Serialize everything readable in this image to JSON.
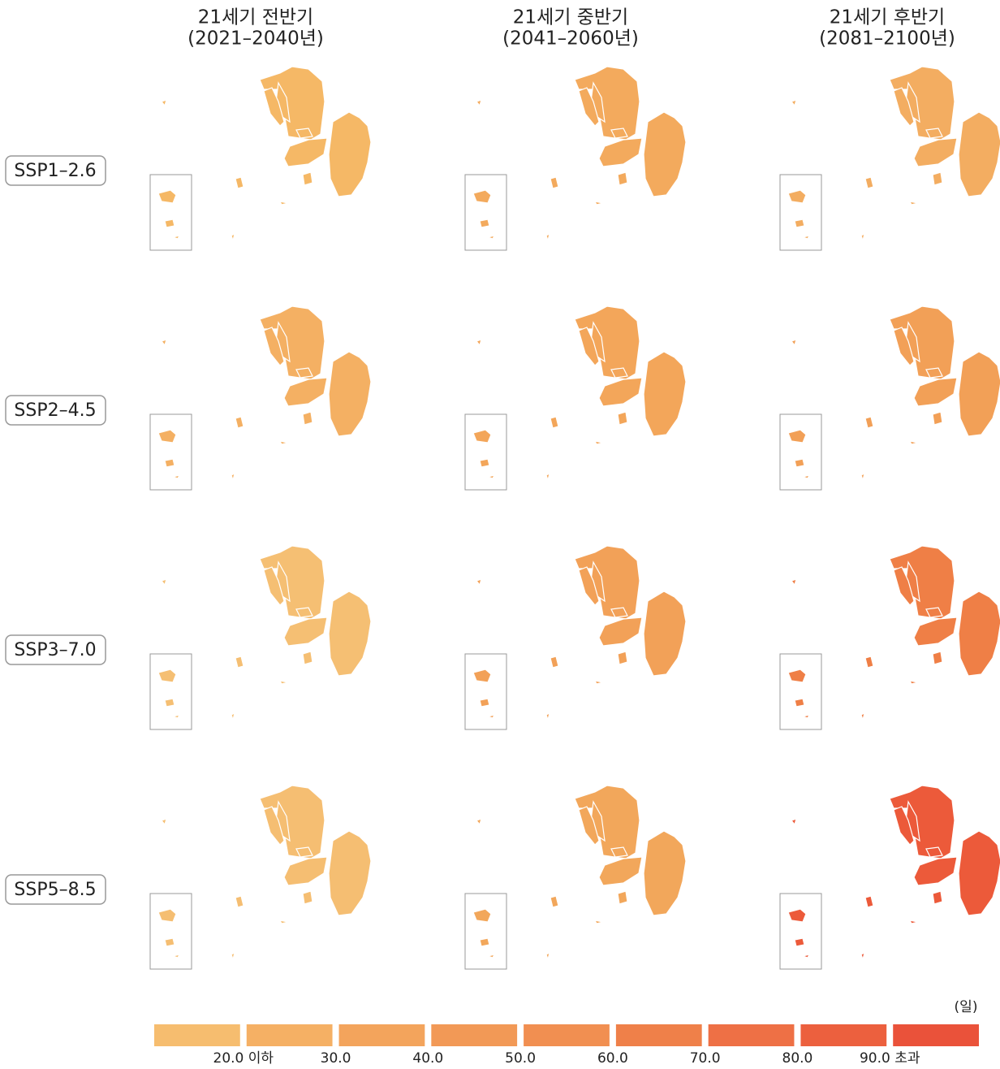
{
  "column_headers": [
    [
      "21세기 전반기",
      "(2021–2040년)"
    ],
    [
      "21세기 중반기",
      "(2041–2060년)"
    ],
    [
      "21세기 후반기",
      "(2081–2100년)"
    ]
  ],
  "row_labels": [
    "SSP1–2.6",
    "SSP2–4.5",
    "SSP3–7.0",
    "SSP5–8.5"
  ],
  "panel_colors": [
    [
      "#f5b866",
      "#f3aa5d",
      "#f3ad61"
    ],
    [
      "#f4b063",
      "#f3a65a",
      "#f2a057"
    ],
    [
      "#f5bf73",
      "#f2a158",
      "#ef7f46"
    ],
    [
      "#f5be72",
      "#f2a75b",
      "#ec5a3a"
    ]
  ],
  "legend": {
    "unit": "(일)",
    "colors": [
      "#f6bd6f",
      "#f5b064",
      "#f3a45c",
      "#f29956",
      "#f18f51",
      "#ef8049",
      "#ee7045",
      "#ec603e",
      "#ea523a"
    ],
    "labels": [
      "20.0 이하",
      "30.0",
      "40.0",
      "50.0",
      "60.0",
      "70.0",
      "80.0",
      "90.0 초과"
    ]
  }
}
